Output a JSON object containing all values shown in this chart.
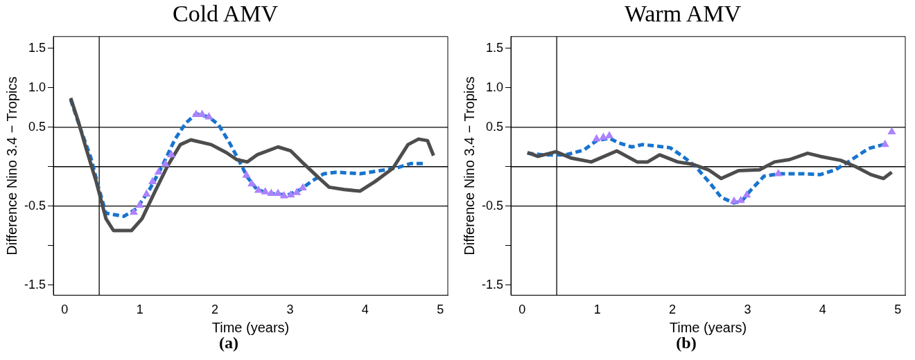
{
  "chart_data": [
    {
      "type": "line",
      "title": "Cold AMV",
      "xlabel": "Time (years)",
      "ylabel": "Difference Nino 3.4 − Tropics",
      "xlim": [
        -0.15,
        5.1
      ],
      "xticks": [
        0,
        1,
        2,
        3,
        4,
        5
      ],
      "ylim": [
        -1.63,
        1.65
      ],
      "yticks": [
        -1.5,
        {
          "value": -1,
          "label": null
        },
        -0.5,
        {
          "value": 0,
          "label": null
        },
        0.5,
        {
          "value": 1,
          "label": "1.0"
        },
        1.5
      ],
      "annotations": [
        "(a)"
      ],
      "ref_lines": [
        {
          "axis": "y",
          "value": 0.5,
          "color": "#000000"
        },
        {
          "axis": "y",
          "value": 0,
          "color": "#000000"
        },
        {
          "axis": "y",
          "value": -0.5,
          "color": "#000000"
        },
        {
          "axis": "x",
          "value": 0.46,
          "color": "#000000"
        }
      ],
      "series": [
        {
          "type": "line",
          "color": "#4d4d4d",
          "line_style": "solid",
          "marker": "none",
          "x": [
            0.08,
            0.18,
            0.28,
            0.42,
            0.55,
            0.65,
            0.89,
            1.03,
            1.2,
            1.37,
            1.54,
            1.68,
            1.95,
            2.15,
            2.29,
            2.43,
            2.56,
            2.84,
            3.01,
            3.18,
            3.38,
            3.52,
            3.72,
            3.93,
            4.13,
            4.37,
            4.57,
            4.71,
            4.83,
            4.91
          ],
          "values": [
            0.87,
            0.58,
            0.25,
            -0.19,
            -0.66,
            -0.81,
            -0.81,
            -0.66,
            -0.32,
            0.01,
            0.28,
            0.34,
            0.28,
            0.18,
            0.09,
            0.06,
            0.15,
            0.25,
            0.2,
            0.04,
            -0.14,
            -0.26,
            -0.29,
            -0.31,
            -0.19,
            -0.02,
            0.28,
            0.35,
            0.33,
            0.14
          ]
        },
        {
          "type": "line",
          "color": "#1874cd",
          "line_style": "dashed",
          "marker": "none",
          "x": [
            0.08,
            0.21,
            0.35,
            0.45,
            0.55,
            0.79,
            0.96,
            1.13,
            1.3,
            1.47,
            1.61,
            1.75,
            1.92,
            2.05,
            2.19,
            2.32,
            2.43,
            2.56,
            2.73,
            2.97,
            3.14,
            3.28,
            3.45,
            3.62,
            3.93,
            4.27,
            4.44,
            4.61,
            4.78
          ],
          "values": [
            0.85,
            0.48,
            0.11,
            -0.26,
            -0.59,
            -0.63,
            -0.53,
            -0.29,
            0.01,
            0.35,
            0.55,
            0.67,
            0.63,
            0.53,
            0.31,
            0.08,
            -0.13,
            -0.29,
            -0.34,
            -0.36,
            -0.29,
            -0.19,
            -0.09,
            -0.07,
            -0.09,
            -0.04,
            -0.01,
            0.04,
            0.04
          ]
        },
        {
          "type": "scatter",
          "color": "#ab82ff",
          "marker": "triangle",
          "x": [
            0.92,
            1.0,
            1.09,
            1.17,
            1.25,
            1.34,
            1.42,
            1.75,
            1.83,
            1.92,
            2.42,
            2.49,
            2.58,
            2.67,
            2.75,
            2.84,
            2.92,
            3.01,
            3.09,
            3.17
          ],
          "values": [
            -0.58,
            -0.49,
            -0.35,
            -0.19,
            -0.07,
            0.03,
            0.15,
            0.66,
            0.66,
            0.63,
            -0.11,
            -0.22,
            -0.3,
            -0.32,
            -0.34,
            -0.34,
            -0.37,
            -0.36,
            -0.33,
            -0.27
          ]
        }
      ]
    },
    {
      "type": "line",
      "title": "Warm AMV",
      "xlabel": "Time (years)",
      "ylabel": "Difference Nino 3.4 − Tropics",
      "xlim": [
        -0.15,
        5.1
      ],
      "xticks": [
        0,
        1,
        2,
        3,
        4,
        5
      ],
      "ylim": [
        -1.63,
        1.65
      ],
      "yticks": [
        -1.5,
        {
          "value": -1,
          "label": null
        },
        -0.5,
        {
          "value": 0,
          "label": null
        },
        0.5,
        {
          "value": 1,
          "label": "1.0"
        },
        1.5
      ],
      "annotations": [
        "(b)"
      ],
      "ref_lines": [
        {
          "axis": "y",
          "value": 0.5,
          "color": "#000000"
        },
        {
          "axis": "y",
          "value": 0,
          "color": "#000000"
        },
        {
          "axis": "y",
          "value": -0.5,
          "color": "#000000"
        },
        {
          "axis": "x",
          "value": 0.46,
          "color": "#000000"
        }
      ],
      "series": [
        {
          "type": "line",
          "color": "#4d4d4d",
          "line_style": "solid",
          "marker": "none",
          "x": [
            0.07,
            0.21,
            0.45,
            0.65,
            0.92,
            1.26,
            1.53,
            1.67,
            1.83,
            2.07,
            2.27,
            2.48,
            2.65,
            2.88,
            3.16,
            3.36,
            3.56,
            3.8,
            3.97,
            4.24,
            4.44,
            4.64,
            4.81,
            4.92
          ],
          "values": [
            0.18,
            0.13,
            0.19,
            0.11,
            0.06,
            0.2,
            0.06,
            0.06,
            0.15,
            0.06,
            0.03,
            -0.04,
            -0.15,
            -0.05,
            -0.04,
            0.06,
            0.09,
            0.17,
            0.13,
            0.08,
            0.0,
            -0.1,
            -0.15,
            -0.07
          ]
        },
        {
          "type": "line",
          "color": "#1874cd",
          "line_style": "dashed",
          "marker": "none",
          "x": [
            0.07,
            0.28,
            0.58,
            0.82,
            0.99,
            1.16,
            1.29,
            1.46,
            1.6,
            1.8,
            1.97,
            2.14,
            2.31,
            2.51,
            2.65,
            2.82,
            2.92,
            3.05,
            3.22,
            3.43,
            3.73,
            3.97,
            4.17,
            4.34,
            4.61,
            4.81
          ],
          "values": [
            0.17,
            0.15,
            0.15,
            0.21,
            0.33,
            0.36,
            0.3,
            0.25,
            0.28,
            0.26,
            0.24,
            0.13,
            0.0,
            -0.22,
            -0.39,
            -0.46,
            -0.44,
            -0.29,
            -0.12,
            -0.09,
            -0.09,
            -0.1,
            -0.04,
            0.06,
            0.23,
            0.28
          ]
        },
        {
          "type": "scatter",
          "color": "#ab82ff",
          "marker": "triangle",
          "x": [
            0.99,
            1.08,
            1.16,
            2.82,
            2.91,
            2.99,
            3.41,
            4.83,
            4.92
          ],
          "values": [
            0.35,
            0.37,
            0.39,
            -0.44,
            -0.43,
            -0.36,
            -0.09,
            0.28,
            0.44
          ]
        }
      ]
    }
  ]
}
